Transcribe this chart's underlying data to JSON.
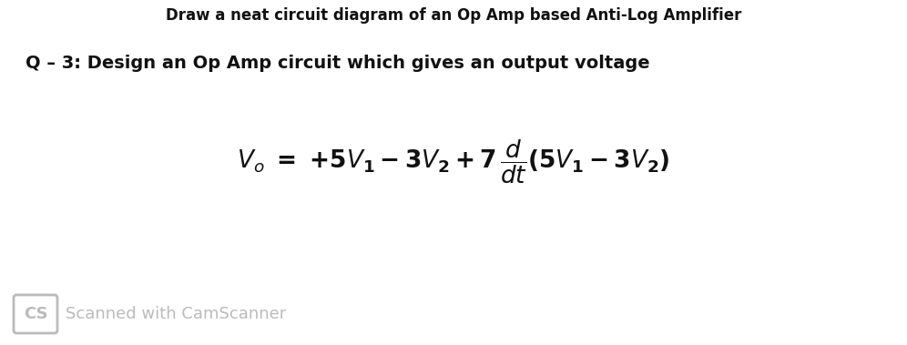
{
  "background_color": "#ffffff",
  "top_text": "Draw a neat circuit diagram of an Op Amp based Anti-Log Amplifier",
  "question_text": "Q – 3: Design an Op Amp circuit which gives an output voltage",
  "footer_text": "Scanned with CamScanner",
  "cs_box_edge_color": "#bbbbbb",
  "cs_text_color": "#bbbbbb",
  "footer_color": "#bbbbbb",
  "top_text_color": "#111111",
  "question_text_color": "#111111",
  "formula_color": "#111111",
  "title_fontsize": 12,
  "question_fontsize": 14,
  "formula_fontsize": 19,
  "footer_fontsize": 13
}
